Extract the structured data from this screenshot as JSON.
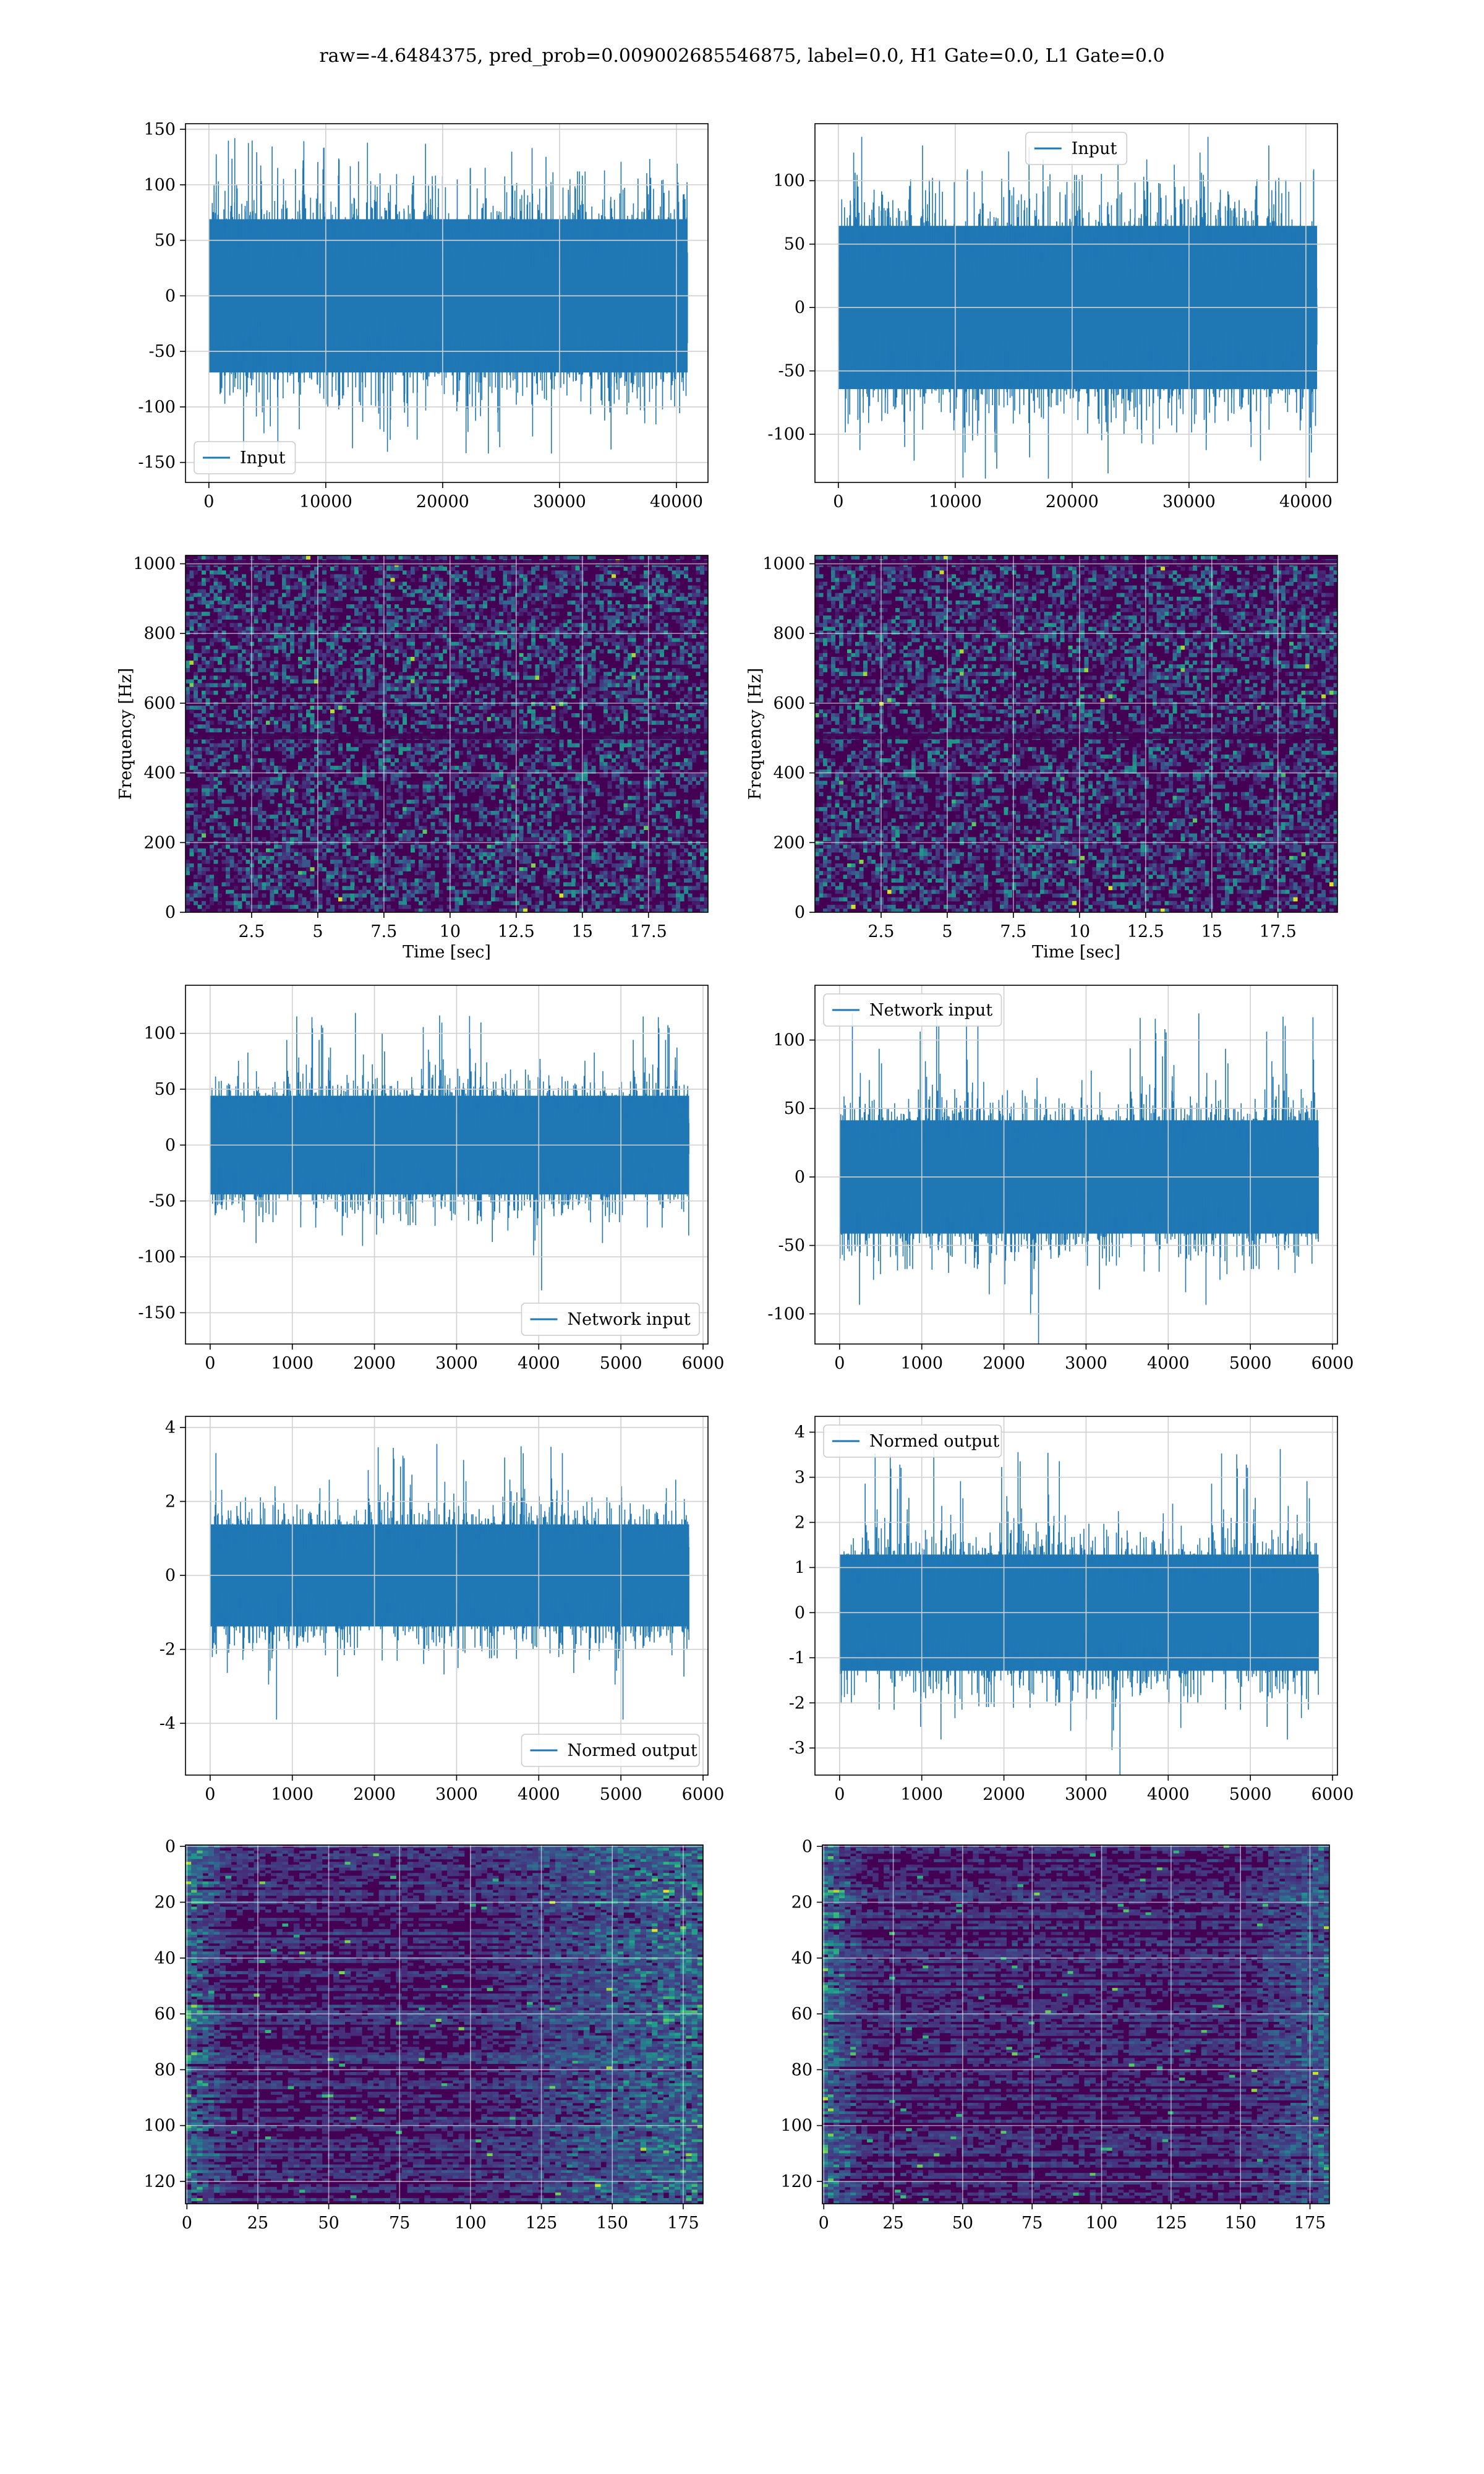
{
  "figure": {
    "title": "raw=-4.6484375, pred_prob=0.009002685546875, label=0.0, H1 Gate=0.0, L1 Gate=0.0"
  },
  "colors": {
    "line": "#1f77b4",
    "grid": "#d0d0d0",
    "viridis_dark": "#440154",
    "viridis_mid": "#21918c",
    "viridis_bright": "#fde725"
  },
  "chart_data": [
    {
      "id": "input-left",
      "type": "line",
      "series": [
        {
          "name": "Input"
        }
      ],
      "legend": "lower-left",
      "grid": true,
      "xlim": [
        -2000,
        42700
      ],
      "ylim": [
        -168,
        155
      ],
      "xticks": [
        0,
        10000,
        20000,
        30000,
        40000
      ],
      "yticks": [
        -150,
        -100,
        -50,
        0,
        50,
        100,
        150
      ],
      "signal": {
        "n_samples": 40960,
        "core_amplitude": 75,
        "peak_amplitude": 142,
        "start": 0,
        "end": 40960
      }
    },
    {
      "id": "input-right",
      "type": "line",
      "series": [
        {
          "name": "Input"
        }
      ],
      "legend": "upper-center",
      "grid": true,
      "xlim": [
        -2000,
        42700
      ],
      "ylim": [
        -138,
        145
      ],
      "xticks": [
        0,
        10000,
        20000,
        30000,
        40000
      ],
      "yticks": [
        -100,
        -50,
        0,
        50,
        100
      ],
      "signal": {
        "n_samples": 40960,
        "core_amplitude": 70,
        "peak_amplitude": 135,
        "start": 0,
        "end": 40960
      }
    },
    {
      "id": "spectrogram-left",
      "type": "heatmap",
      "colormap": "viridis",
      "grid": true,
      "xlabel": "Time [sec]",
      "ylabel": "Frequency [Hz]",
      "xlim": [
        0,
        19.75
      ],
      "ylim": [
        0,
        1024
      ],
      "xticks": [
        2.5,
        5.0,
        7.5,
        10.0,
        12.5,
        15.0,
        17.5
      ],
      "yticks": [
        0,
        200,
        400,
        600,
        800,
        1000
      ]
    },
    {
      "id": "spectrogram-right",
      "type": "heatmap",
      "colormap": "viridis",
      "grid": true,
      "xlabel": "Time [sec]",
      "ylabel": "Frequency [Hz]",
      "xlim": [
        0,
        19.75
      ],
      "ylim": [
        0,
        1024
      ],
      "xticks": [
        2.5,
        5.0,
        7.5,
        10.0,
        12.5,
        15.0,
        17.5
      ],
      "yticks": [
        0,
        200,
        400,
        600,
        800,
        1000
      ]
    },
    {
      "id": "network-input-left",
      "type": "line",
      "series": [
        {
          "name": "Network input"
        }
      ],
      "legend": "lower-right",
      "grid": true,
      "xlim": [
        -300,
        6060
      ],
      "ylim": [
        -178,
        143
      ],
      "xticks": [
        0,
        1000,
        2000,
        3000,
        4000,
        5000,
        6000
      ],
      "yticks": [
        -150,
        -100,
        -50,
        0,
        50,
        100
      ],
      "signal": {
        "n_samples": 5830,
        "core_amplitude": 48,
        "peak_amplitude": 130,
        "start": 0,
        "end": 5830
      }
    },
    {
      "id": "network-input-right",
      "type": "line",
      "series": [
        {
          "name": "Network input"
        }
      ],
      "legend": "upper-left",
      "grid": true,
      "xlim": [
        -300,
        6060
      ],
      "ylim": [
        -122,
        140
      ],
      "xticks": [
        0,
        1000,
        2000,
        3000,
        4000,
        5000,
        6000
      ],
      "yticks": [
        -100,
        -50,
        0,
        50,
        100
      ],
      "signal": {
        "n_samples": 5830,
        "core_amplitude": 45,
        "peak_amplitude": 132,
        "start": 0,
        "end": 5830
      }
    },
    {
      "id": "normed-output-left",
      "type": "line",
      "series": [
        {
          "name": "Normed output"
        }
      ],
      "legend": "lower-right",
      "grid": true,
      "xlim": [
        -300,
        6060
      ],
      "ylim": [
        -5.4,
        4.3
      ],
      "xticks": [
        0,
        1000,
        2000,
        3000,
        4000,
        5000,
        6000
      ],
      "yticks": [
        -4,
        -2,
        0,
        2,
        4
      ],
      "signal": {
        "n_samples": 5830,
        "core_amplitude": 1.5,
        "peak_amplitude": 3.9,
        "start": 0,
        "end": 5830
      }
    },
    {
      "id": "normed-output-right",
      "type": "line",
      "series": [
        {
          "name": "Normed output"
        }
      ],
      "legend": "upper-left",
      "grid": true,
      "xlim": [
        -300,
        6060
      ],
      "ylim": [
        -3.6,
        4.35
      ],
      "xticks": [
        0,
        1000,
        2000,
        3000,
        4000,
        5000,
        6000
      ],
      "yticks": [
        -3,
        -2,
        -1,
        0,
        1,
        2,
        3,
        4
      ],
      "signal": {
        "n_samples": 5830,
        "core_amplitude": 1.4,
        "peak_amplitude": 4.0,
        "start": 0,
        "end": 5830
      }
    },
    {
      "id": "feature-map-left",
      "type": "heatmap",
      "colormap": "viridis",
      "grid": true,
      "xlim": [
        -0.5,
        182
      ],
      "ylim": [
        128,
        -0.5
      ],
      "xticks": [
        0,
        25,
        50,
        75,
        100,
        125,
        150,
        175
      ],
      "yticks": [
        0,
        20,
        40,
        60,
        80,
        100,
        120
      ]
    },
    {
      "id": "feature-map-right",
      "type": "heatmap",
      "colormap": "viridis",
      "grid": true,
      "xlim": [
        -0.5,
        182
      ],
      "ylim": [
        128,
        -0.5
      ],
      "xticks": [
        0,
        25,
        50,
        75,
        100,
        125,
        150,
        175
      ],
      "yticks": [
        0,
        20,
        40,
        60,
        80,
        100,
        120
      ]
    }
  ]
}
